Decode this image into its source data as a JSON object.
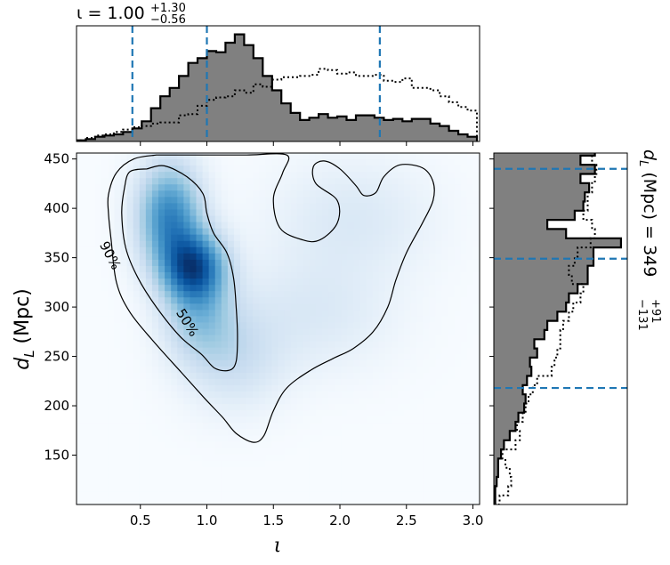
{
  "chart_data": {
    "type": "heatmap",
    "xlabel": "ι",
    "ylabel": "d",
    "ylabel_sub": "L",
    "ylabel_unit": " (Mpc)",
    "xlim": [
      0.02,
      3.05
    ],
    "ylim": [
      100,
      456
    ],
    "xticks": [
      0.5,
      1.0,
      1.5,
      2.0,
      2.5,
      3.0
    ],
    "xtick_labels": [
      "0.5",
      "1.0",
      "1.5",
      "2.0",
      "2.5",
      "3.0"
    ],
    "yticks": [
      150,
      200,
      250,
      300,
      350,
      400,
      450
    ],
    "ytick_labels": [
      "150",
      "200",
      "250",
      "300",
      "350",
      "400",
      "450"
    ],
    "colormap": "Blues",
    "density_peaks": [
      {
        "x": 0.9,
        "y": 340,
        "weight": 1.0,
        "sx": 0.16,
        "sy": 24
      },
      {
        "x": 0.72,
        "y": 392,
        "weight": 0.75,
        "sx": 0.16,
        "sy": 35
      },
      {
        "x": 0.95,
        "y": 290,
        "weight": 0.35,
        "sx": 0.18,
        "sy": 30
      },
      {
        "x": 1.2,
        "y": 250,
        "weight": 0.2,
        "sx": 0.25,
        "sy": 35
      },
      {
        "x": 1.8,
        "y": 295,
        "weight": 0.12,
        "sx": 0.4,
        "sy": 40
      },
      {
        "x": 2.1,
        "y": 390,
        "weight": 0.12,
        "sx": 0.4,
        "sy": 40
      }
    ],
    "contours": [
      {
        "label": "90%",
        "points": [
          [
            0.62,
            454
          ],
          [
            0.45,
            450
          ],
          [
            0.32,
            436
          ],
          [
            0.26,
            414
          ],
          [
            0.26,
            395
          ],
          [
            0.28,
            368
          ],
          [
            0.32,
            325
          ],
          [
            0.42,
            295
          ],
          [
            0.6,
            265
          ],
          [
            0.8,
            235
          ],
          [
            0.98,
            208
          ],
          [
            1.12,
            188
          ],
          [
            1.22,
            172
          ],
          [
            1.35,
            163
          ],
          [
            1.43,
            170
          ],
          [
            1.5,
            195
          ],
          [
            1.6,
            218
          ],
          [
            1.78,
            236
          ],
          [
            1.95,
            248
          ],
          [
            2.1,
            258
          ],
          [
            2.25,
            275
          ],
          [
            2.36,
            300
          ],
          [
            2.42,
            327
          ],
          [
            2.5,
            355
          ],
          [
            2.62,
            385
          ],
          [
            2.7,
            408
          ],
          [
            2.7,
            427
          ],
          [
            2.62,
            441
          ],
          [
            2.45,
            444
          ],
          [
            2.33,
            432
          ],
          [
            2.27,
            416
          ],
          [
            2.18,
            413
          ],
          [
            2.12,
            423
          ],
          [
            2.0,
            440
          ],
          [
            1.88,
            448
          ],
          [
            1.8,
            442
          ],
          [
            1.82,
            425
          ],
          [
            1.98,
            408
          ],
          [
            1.98,
            385
          ],
          [
            1.85,
            368
          ],
          [
            1.72,
            368
          ],
          [
            1.55,
            380
          ],
          [
            1.5,
            410
          ],
          [
            1.57,
            436
          ],
          [
            1.6,
            454
          ],
          [
            1.3,
            454
          ],
          [
            1.0,
            454
          ],
          [
            0.62,
            454
          ]
        ]
      },
      {
        "label": "50%",
        "points": [
          [
            0.55,
            440
          ],
          [
            0.68,
            443
          ],
          [
            0.85,
            432
          ],
          [
            0.97,
            415
          ],
          [
            1.0,
            395
          ],
          [
            1.05,
            375
          ],
          [
            1.15,
            355
          ],
          [
            1.2,
            330
          ],
          [
            1.22,
            300
          ],
          [
            1.23,
            270
          ],
          [
            1.22,
            245
          ],
          [
            1.17,
            236
          ],
          [
            1.06,
            238
          ],
          [
            0.96,
            252
          ],
          [
            0.8,
            270
          ],
          [
            0.62,
            300
          ],
          [
            0.48,
            330
          ],
          [
            0.39,
            360
          ],
          [
            0.36,
            395
          ],
          [
            0.38,
            420
          ],
          [
            0.42,
            437
          ],
          [
            0.55,
            440
          ]
        ]
      }
    ],
    "contour_labels": [
      {
        "text": "90%",
        "x": 0.27,
        "y": 352,
        "rotation": 62
      },
      {
        "text": "50%",
        "x": 0.85,
        "y": 284,
        "rotation": 58
      }
    ],
    "marginal_top": {
      "title": "ι = 1.00",
      "title_sup": "+1.30",
      "title_sub": "−0.56",
      "bin_edges_start": 0.02,
      "bin_width": 0.07,
      "counts": [
        1,
        2,
        4,
        5,
        6,
        8,
        11,
        17,
        28,
        38,
        45,
        55,
        66,
        70,
        76,
        75,
        83,
        90,
        81,
        70,
        55,
        43,
        32,
        24,
        18,
        20,
        23,
        20,
        21,
        18,
        22,
        22,
        20,
        18,
        19,
        17,
        19,
        19,
        15,
        13,
        9,
        6,
        4
      ],
      "dotted": [
        1,
        3,
        5,
        6,
        8,
        10,
        12,
        13,
        15,
        16,
        16,
        22,
        23,
        30,
        35,
        37,
        38,
        43,
        41,
        48,
        46,
        52,
        54,
        54,
        55,
        56,
        61,
        60,
        57,
        58,
        55,
        55,
        56,
        51,
        50,
        53,
        45,
        45,
        43,
        38,
        33,
        29,
        26
      ],
      "vlines": [
        0.44,
        1.0,
        2.3
      ]
    },
    "marginal_right": {
      "title": "d",
      "title_sub": "L",
      "title_unit": " (Mpc) = 349",
      "title_sup": "+91",
      "title_sub2": "−131",
      "bin_edges_start": 100,
      "bin_width": 9.3,
      "counts": [
        1,
        1,
        2,
        3,
        3,
        5,
        7,
        11,
        15,
        17,
        21,
        22,
        20,
        23,
        26,
        25,
        30,
        28,
        35,
        37,
        44,
        50,
        52,
        58,
        65,
        65,
        69,
        69,
        88,
        50,
        37,
        56,
        62,
        63,
        66,
        60,
        70,
        60,
        70,
        78,
        50,
        60,
        55,
        42,
        28,
        30
      ],
      "dotted": [
        4,
        10,
        12,
        11,
        8,
        6,
        15,
        18,
        16,
        20,
        22,
        24,
        27,
        30,
        40,
        42,
        44,
        46,
        46,
        48,
        52,
        55,
        60,
        62,
        54,
        52,
        56,
        58,
        67,
        70,
        68,
        62,
        65,
        65,
        68,
        70,
        71,
        68,
        68,
        72,
        72,
        73,
        76,
        70,
        72,
        75
      ],
      "hlines": [
        218,
        349,
        440
      ]
    }
  }
}
